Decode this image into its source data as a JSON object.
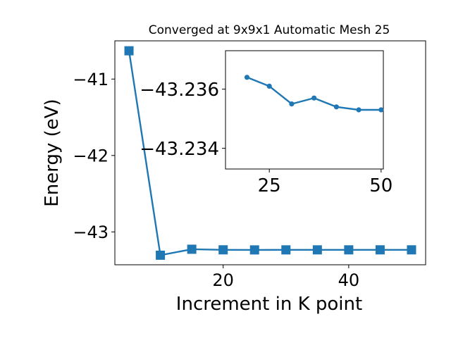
{
  "chart_data": [
    {
      "type": "line",
      "title": "Converged at 9x9x1 Automatic Mesh 25",
      "xlabel": "Increment in K point",
      "ylabel": "Energy (eV)",
      "xlim": [
        2.75,
        52.25
      ],
      "ylim": [
        -43.43,
        -40.5
      ],
      "x_ticks": [
        20,
        40
      ],
      "x_tick_labels": [
        "20",
        "40"
      ],
      "y_ticks": [
        -41,
        -42,
        -43
      ],
      "y_tick_labels": [
        "−41",
        "−42",
        "−43"
      ],
      "marker": "square",
      "series": [
        {
          "x": [
            5,
            10,
            15,
            20,
            25,
            30,
            35,
            40,
            45,
            50
          ],
          "y": [
            -40.63,
            -43.305,
            -43.2268,
            -43.2345,
            -43.2355,
            -43.235,
            -43.2348,
            -43.2347,
            -43.2346,
            -43.2346
          ]
        }
      ]
    },
    {
      "type": "line",
      "title": "",
      "xlabel": "",
      "ylabel": "",
      "xlim": [
        15.2,
        50.5
      ],
      "ylim": [
        -43.2333,
        -43.2373
      ],
      "x_ticks": [
        25,
        50
      ],
      "x_tick_labels": [
        "25",
        "50"
      ],
      "y_ticks": [
        -43.236,
        -43.234
      ],
      "y_tick_labels": [
        "−43.236",
        "−43.234"
      ],
      "marker": "circle",
      "series": [
        {
          "x": [
            20,
            25,
            30,
            35,
            40,
            45,
            50
          ],
          "y": [
            -43.2364,
            -43.2361,
            -43.2355,
            -43.2357,
            -43.2354,
            -43.2353,
            -43.2353
          ]
        }
      ]
    }
  ],
  "colors": {
    "series": "#1f77b4",
    "axes": "#000000",
    "background": "#ffffff"
  }
}
